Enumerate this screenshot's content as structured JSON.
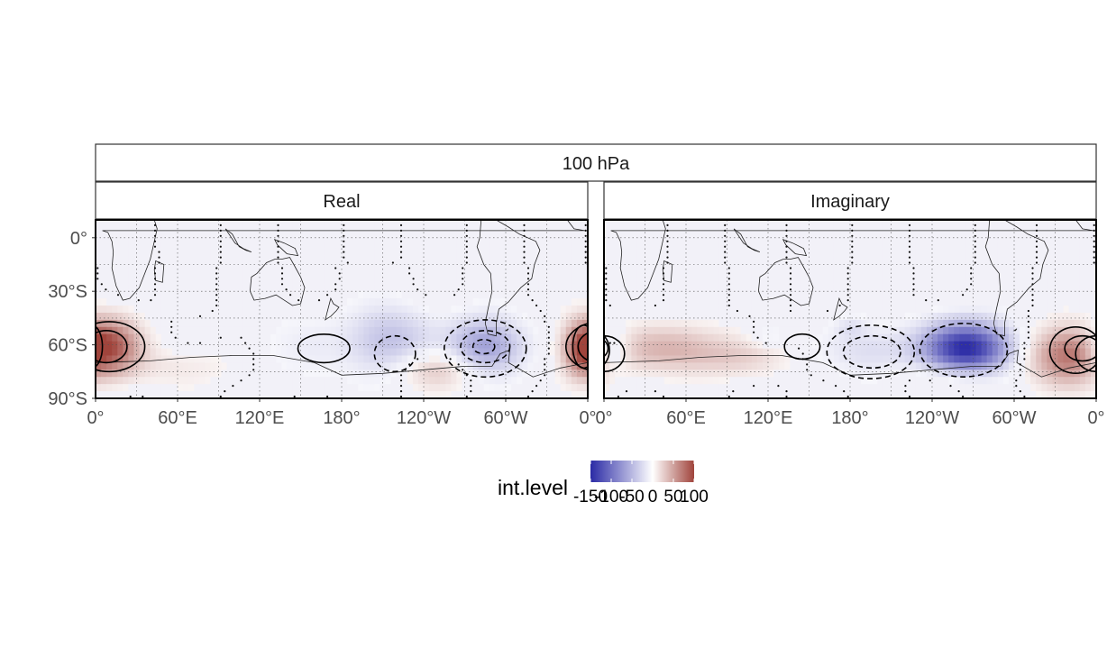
{
  "chart_data": {
    "type": "heatmap",
    "level_strip": "100 hPa",
    "facets": [
      {
        "label": "Real",
        "anomalies": [
          {
            "lon": 8,
            "lat": -61,
            "amp": 95,
            "slon": 16,
            "slat": 11
          },
          {
            "lon": 285,
            "lat": -61,
            "amp": -70,
            "slon": 19,
            "slat": 11
          },
          {
            "lon": 215,
            "lat": -58,
            "amp": -45,
            "slon": 21,
            "slat": 13
          },
          {
            "lon": 250,
            "lat": -73,
            "amp": 35,
            "slon": 22,
            "slat": 8
          },
          {
            "lon": 355,
            "lat": -63,
            "amp": 45,
            "slon": 8,
            "slat": 10
          },
          {
            "lon": 60,
            "lat": -72,
            "amp": 12,
            "slon": 35,
            "slat": 8
          },
          {
            "lon": 150,
            "lat": -62,
            "amp": -10,
            "slon": 30,
            "slat": 15
          }
        ],
        "contours": [
          {
            "lon": 10,
            "lat": -61,
            "rlon": 26,
            "rlat": 14,
            "style": "solid"
          },
          {
            "lon": 8,
            "lat": -61,
            "rlon": 15,
            "rlat": 9,
            "style": "solid"
          },
          {
            "lon": 167,
            "lat": -62,
            "rlon": 19,
            "rlat": 8,
            "style": "solid"
          },
          {
            "lon": 357,
            "lat": -61,
            "rlon": 8,
            "rlat": 12,
            "style": "solid"
          },
          {
            "lon": 285,
            "lat": -62,
            "rlon": 30,
            "rlat": 16,
            "style": "dashed"
          },
          {
            "lon": 285,
            "lat": -61,
            "rlon": 18,
            "rlat": 9,
            "style": "dashed"
          },
          {
            "lon": 284,
            "lat": -61,
            "rlon": 8,
            "rlat": 4,
            "style": "dashed"
          },
          {
            "lon": 219,
            "lat": -65,
            "rlon": 15,
            "rlat": 10,
            "style": "dashed"
          }
        ]
      },
      {
        "label": "Imaginary",
        "anomalies": [
          {
            "lon": 265,
            "lat": -62,
            "amp": -150,
            "slon": 22,
            "slat": 10
          },
          {
            "lon": 195,
            "lat": -63,
            "amp": -25,
            "slon": 22,
            "slat": 10
          },
          {
            "lon": 340,
            "lat": -66,
            "amp": 75,
            "slon": 20,
            "slat": 11
          },
          {
            "lon": 5,
            "lat": -63,
            "amp": -45,
            "slon": 10,
            "slat": 9
          },
          {
            "lon": 50,
            "lat": -62,
            "amp": 40,
            "slon": 30,
            "slat": 9
          },
          {
            "lon": 100,
            "lat": -68,
            "amp": 18,
            "slon": 25,
            "slat": 7
          },
          {
            "lon": 255,
            "lat": -77,
            "amp": 20,
            "slon": 25,
            "slat": 6
          },
          {
            "lon": 120,
            "lat": -55,
            "amp": -15,
            "slon": 10,
            "slat": 5
          },
          {
            "lon": 180,
            "lat": -50,
            "amp": -15,
            "slon": 8,
            "slat": 4
          }
        ],
        "contours": [
          {
            "lon": 345,
            "lat": -63,
            "rlon": 19,
            "rlat": 13,
            "style": "solid"
          },
          {
            "lon": 350,
            "lat": -62,
            "rlon": 13,
            "rlat": 7,
            "style": "solid"
          },
          {
            "lon": 0,
            "lat": -65,
            "rlon": 15,
            "rlat": 10,
            "style": "solid"
          },
          {
            "lon": 145,
            "lat": -61,
            "rlon": 13,
            "rlat": 7,
            "style": "solid"
          },
          {
            "lon": 195,
            "lat": -64,
            "rlon": 32,
            "rlat": 15,
            "style": "dashed"
          },
          {
            "lon": 196,
            "lat": -64,
            "rlon": 21,
            "rlat": 9,
            "style": "dashed"
          },
          {
            "lon": 263,
            "lat": -63,
            "rlon": 32,
            "rlat": 15,
            "style": "dashed"
          }
        ]
      }
    ],
    "x_ticks": [
      {
        "lon": 0,
        "label": "0°"
      },
      {
        "lon": 60,
        "label": "60°E"
      },
      {
        "lon": 120,
        "label": "120°E"
      },
      {
        "lon": 180,
        "label": "180°"
      },
      {
        "lon": 240,
        "label": "120°W"
      },
      {
        "lon": 300,
        "label": "60°W"
      },
      {
        "lon": 360,
        "label": "0°"
      }
    ],
    "y_ticks": [
      {
        "lat": 0,
        "label": "0°"
      },
      {
        "lat": -30,
        "label": "30°S"
      },
      {
        "lat": -60,
        "label": "60°S"
      },
      {
        "lat": -90,
        "label": "90°S"
      }
    ],
    "xlim": [
      0,
      360
    ],
    "ylim": [
      -90,
      10
    ],
    "grid": "dotted",
    "legend": {
      "title": "int.level",
      "position": "bottom",
      "range": [
        -150,
        100
      ],
      "breaks": [
        "-150",
        "-100",
        "-50",
        "0",
        "50",
        "100"
      ],
      "low_color": "#2a2aa5",
      "mid_color": "#ffffff",
      "high_color": "#a0443c"
    }
  }
}
